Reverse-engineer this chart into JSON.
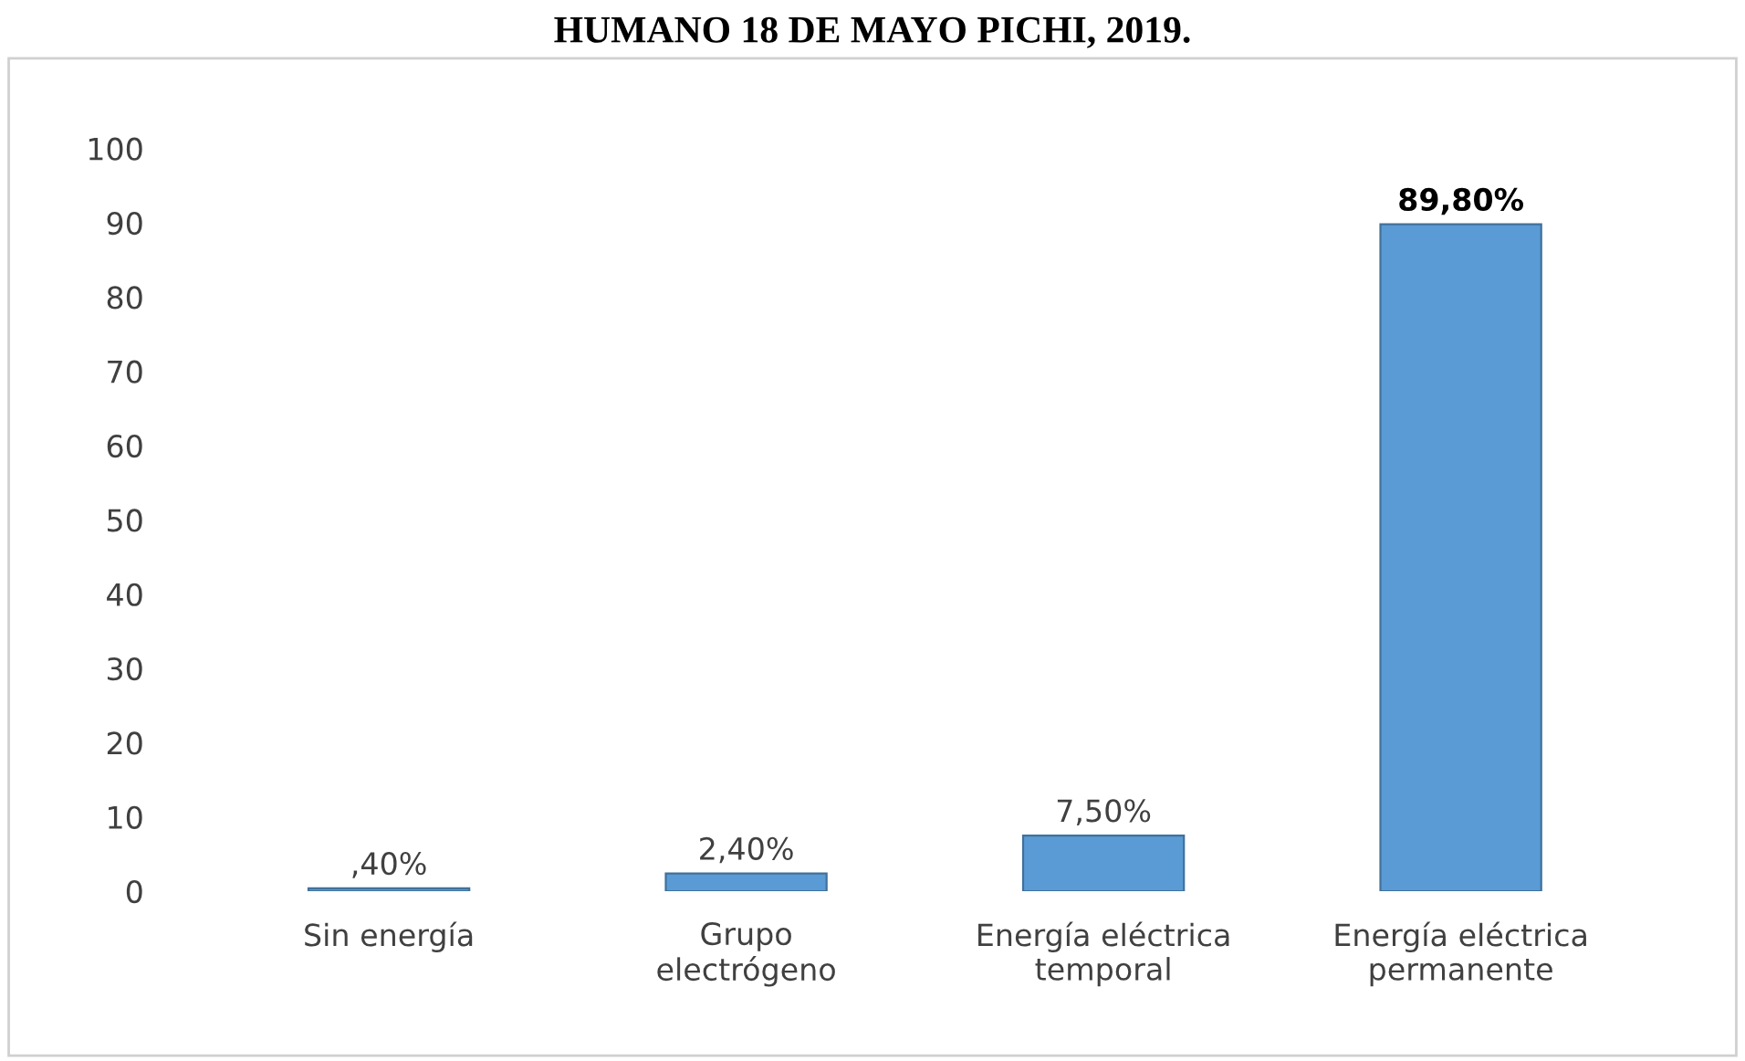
{
  "chart_data": {
    "type": "bar",
    "title": "HUMANO 18 DE MAYO PICHI, 2019.",
    "categories": [
      "Sin energía",
      "Grupo\nelectrógeno",
      "Energía eléctrica\ntemporal",
      "Energía eléctrica\npermanente"
    ],
    "values": [
      0.4,
      2.4,
      7.5,
      89.8
    ],
    "value_labels": [
      ",40%",
      "2,40%",
      "7,50%",
      "89,80%"
    ],
    "color": "#5b9bd5",
    "ylim": [
      0,
      100
    ],
    "yticks": [
      0,
      10,
      20,
      30,
      40,
      50,
      60,
      70,
      80,
      90,
      100
    ],
    "grid": false
  }
}
